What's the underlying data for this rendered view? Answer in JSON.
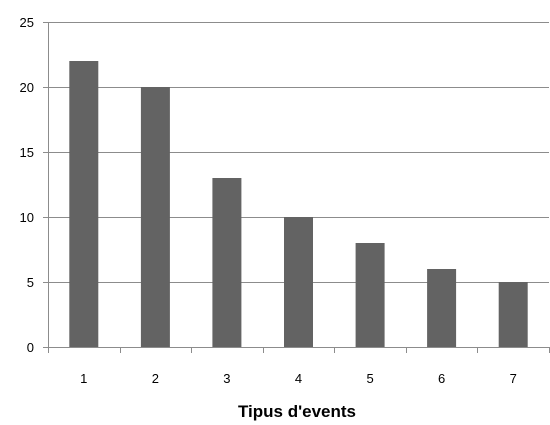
{
  "chart_data": {
    "type": "bar",
    "title": "",
    "xlabel": "Tipus d'events",
    "ylabel": "",
    "categories": [
      "1",
      "2",
      "3",
      "4",
      "5",
      "6",
      "7"
    ],
    "values": [
      22,
      20,
      13,
      10,
      8,
      6,
      5
    ],
    "ylim": [
      0,
      25
    ],
    "yticks": [
      0,
      5,
      10,
      15,
      20,
      25
    ],
    "grid": true,
    "legend": "none",
    "bar_color": "#636363",
    "grid_color": "#8c8c8c",
    "axis_color": "#8c8c8c"
  }
}
